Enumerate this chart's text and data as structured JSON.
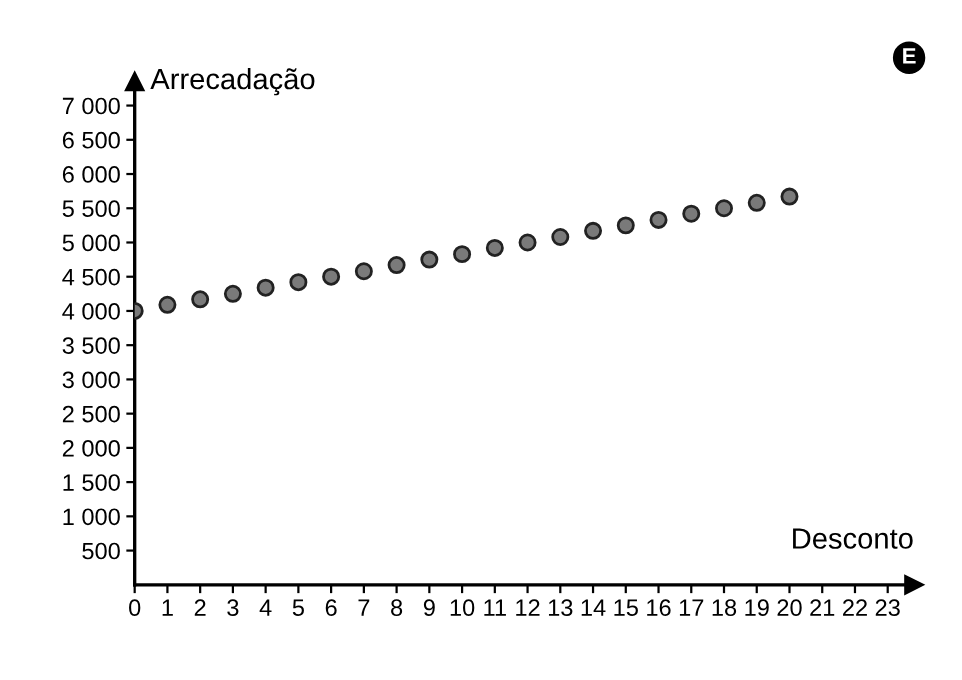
{
  "chart_data": {
    "type": "scatter",
    "xlabel": "Desconto",
    "ylabel": "Arrecadação",
    "x": [
      0,
      1,
      2,
      3,
      4,
      5,
      6,
      7,
      8,
      9,
      10,
      11,
      12,
      13,
      14,
      15,
      16,
      17,
      18,
      19,
      20
    ],
    "series": [
      {
        "color": "#7a7a7a",
        "values": [
          4000,
          4090,
          4170,
          4250,
          4340,
          4420,
          4500,
          4580,
          4670,
          4750,
          4830,
          4920,
          5000,
          5080,
          5170,
          5250,
          5330,
          5420,
          5500,
          5580,
          5670
        ]
      }
    ],
    "marker": "circle",
    "xlim": [
      0,
      23.8
    ],
    "ylim": [
      0,
      7350
    ],
    "xticks": [
      0,
      1,
      2,
      3,
      4,
      5,
      6,
      7,
      8,
      9,
      10,
      11,
      12,
      13,
      14,
      15,
      16,
      17,
      18,
      19,
      20,
      21,
      22,
      23
    ],
    "yticks": [
      500,
      {
        "value": 1000,
        "label": "1 000"
      },
      {
        "value": 1500,
        "label": "1 500"
      },
      {
        "value": 2000,
        "label": "2 000"
      },
      {
        "value": 2500,
        "label": "2 500"
      },
      {
        "value": 3000,
        "label": "3 000"
      },
      {
        "value": 3500,
        "label": "3 500"
      },
      {
        "value": 4000,
        "label": "4 000"
      },
      {
        "value": 4500,
        "label": "4 500"
      },
      {
        "value": 5000,
        "label": "5 000"
      },
      {
        "value": 5500,
        "label": "5 500"
      },
      {
        "value": 6000,
        "label": "6 000"
      },
      {
        "value": 6500,
        "label": "6 500"
      },
      {
        "value": 7000,
        "label": "7 000"
      }
    ],
    "grid": false,
    "annotations": [
      "E"
    ]
  }
}
